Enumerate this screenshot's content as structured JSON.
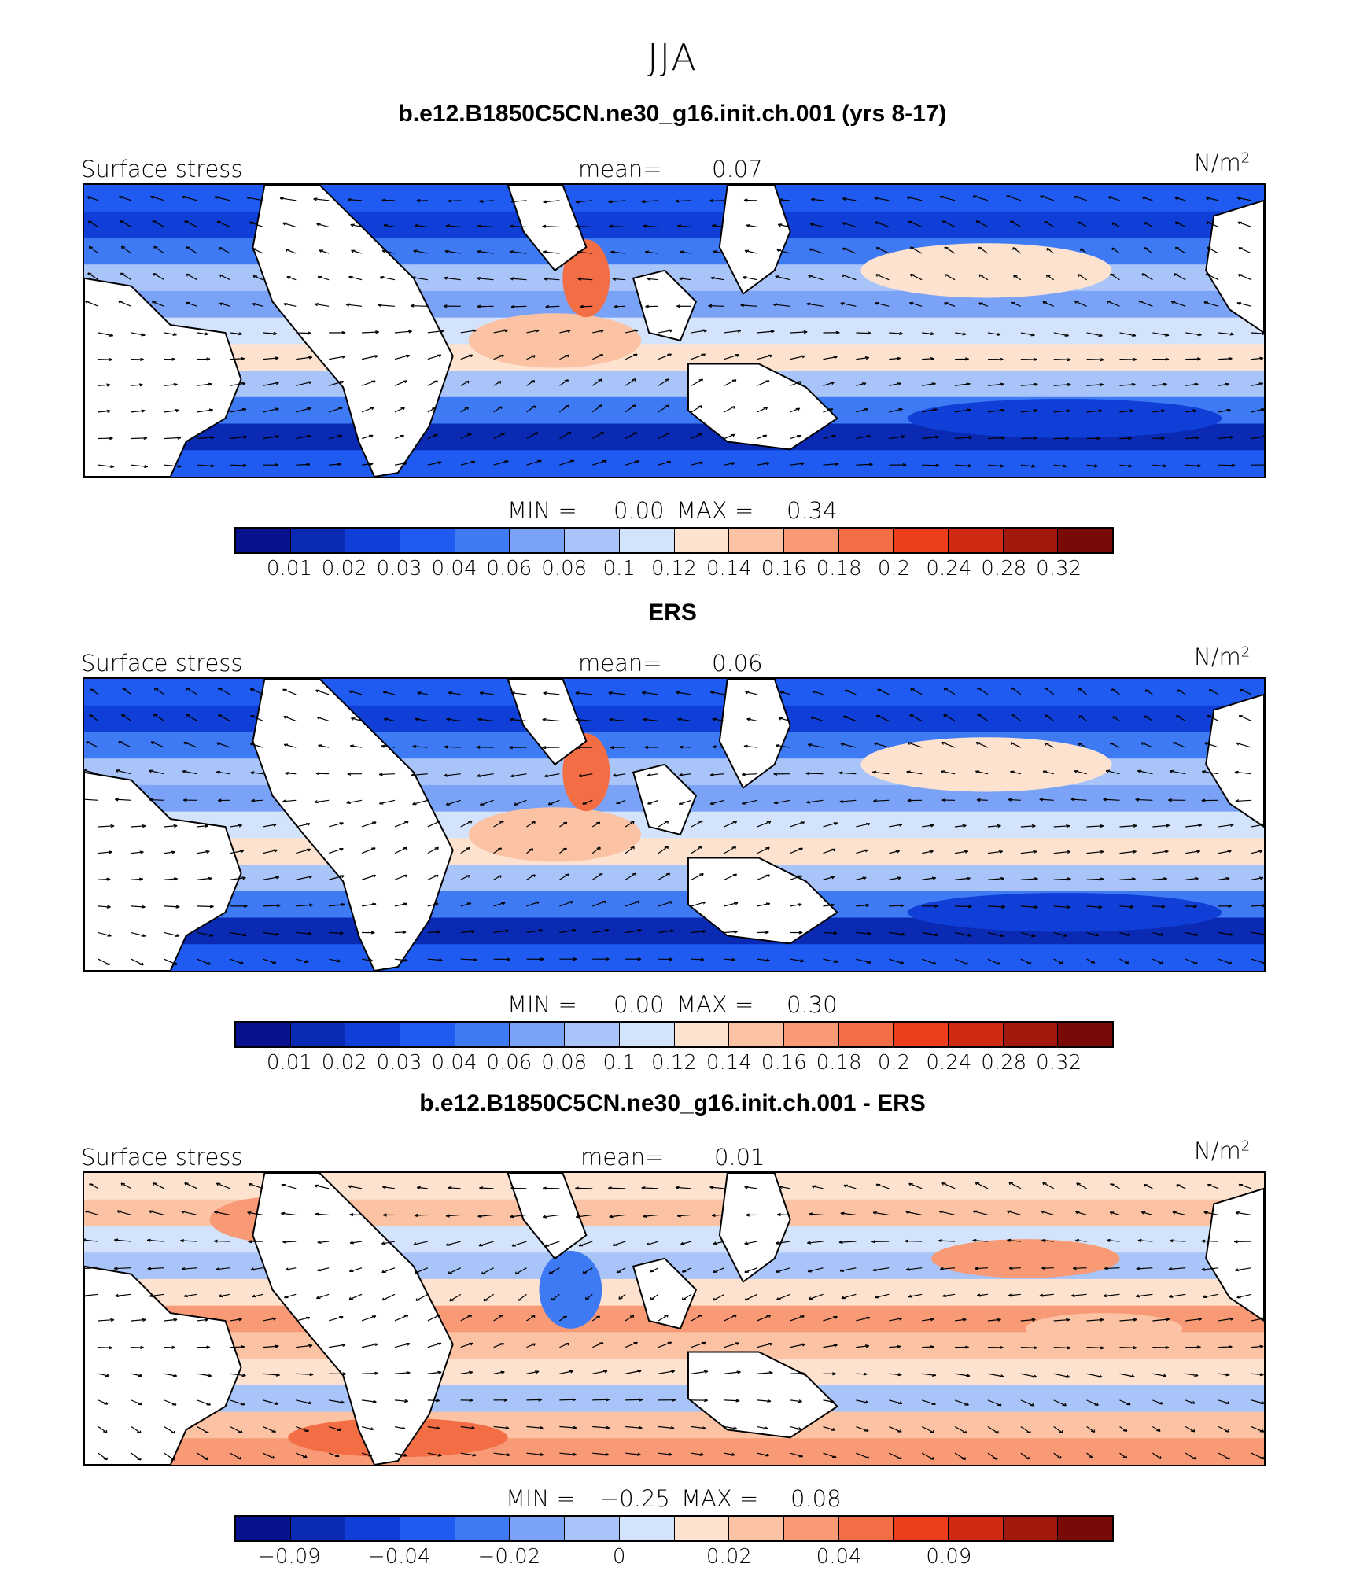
{
  "title": "JJA",
  "units_label": "N/m",
  "units_exponent": "2",
  "field_label": "Surface stress",
  "mean_label": "mean=",
  "min_label": "MIN =",
  "max_label": "MAX =",
  "palette": [
    "#08128f",
    "#0a2ab4",
    "#0f3fd6",
    "#1f5bf0",
    "#3f7af5",
    "#7aa3f7",
    "#a8c4f8",
    "#d3e3fb",
    "#fde3cf",
    "#fbc2a4",
    "#f79a75",
    "#f36d45",
    "#ec3e1d",
    "#cf2a12",
    "#a3180d",
    "#7a0a08"
  ],
  "panels": [
    {
      "title": "b.e12.B1850C5CN.ne30_g16.init.ch.001 (yrs 8-17)",
      "mean": "0.07",
      "min": "0.00",
      "max": "0.34",
      "colorbar_ticks": [
        "0.01",
        "0.02",
        "0.03",
        "0.04",
        "0.06",
        "0.08",
        "0.1",
        "0.12",
        "0.14",
        "0.16",
        "0.18",
        "0.2",
        "0.24",
        "0.28",
        "0.32"
      ]
    },
    {
      "title": "ERS",
      "mean": "0.06",
      "min": "0.00",
      "max": "0.30",
      "colorbar_ticks": [
        "0.01",
        "0.02",
        "0.03",
        "0.04",
        "0.06",
        "0.08",
        "0.1",
        "0.12",
        "0.14",
        "0.16",
        "0.18",
        "0.2",
        "0.24",
        "0.28",
        "0.32"
      ]
    },
    {
      "title": "b.e12.B1850C5CN.ne30_g16.init.ch.001 - ERS",
      "mean": "0.01",
      "min": "−0.25",
      "max": "0.08",
      "colorbar_ticks": [
        "−0.09",
        "",
        "−0.04",
        "",
        "−0.02",
        "",
        "0",
        "",
        "0.02",
        "",
        "0.04",
        "",
        "0.09",
        "",
        ""
      ]
    }
  ],
  "chart_data": [
    {
      "type": "heatmap",
      "title": "b.e12.B1850C5CN.ne30_g16.init.ch.001 (yrs 8-17)",
      "subtitle": "JJA",
      "variable": "Surface stress",
      "units": "N/m^2",
      "mean": 0.07,
      "min": 0.0,
      "max": 0.34,
      "levels": [
        0.01,
        0.02,
        0.03,
        0.04,
        0.06,
        0.08,
        0.1,
        0.12,
        0.14,
        0.16,
        0.18,
        0.2,
        0.24,
        0.28,
        0.32
      ],
      "overlay": "wind stress vectors"
    },
    {
      "type": "heatmap",
      "title": "ERS",
      "variable": "Surface stress",
      "units": "N/m^2",
      "mean": 0.06,
      "min": 0.0,
      "max": 0.3,
      "levels": [
        0.01,
        0.02,
        0.03,
        0.04,
        0.06,
        0.08,
        0.1,
        0.12,
        0.14,
        0.16,
        0.18,
        0.2,
        0.24,
        0.28,
        0.32
      ],
      "overlay": "wind stress vectors"
    },
    {
      "type": "heatmap",
      "title": "b.e12.B1850C5CN.ne30_g16.init.ch.001 - ERS",
      "variable": "Surface stress",
      "units": "N/m^2",
      "mean": 0.01,
      "min": -0.25,
      "max": 0.08,
      "colorbar_tick_labels": [
        -0.09,
        -0.04,
        -0.02,
        0,
        0.02,
        0.04,
        0.09
      ],
      "overlay": "wind stress difference vectors"
    }
  ]
}
